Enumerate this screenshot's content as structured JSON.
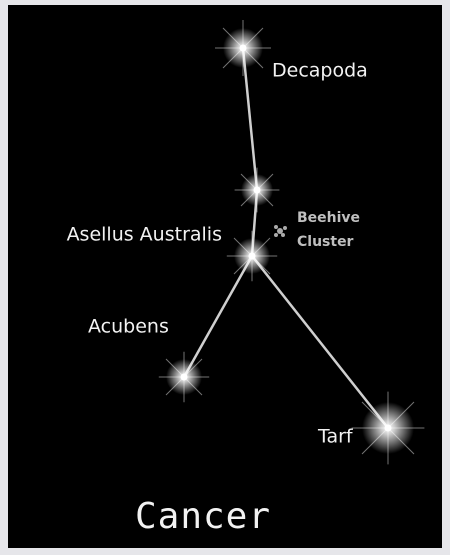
{
  "title": "Cancer",
  "stars": [
    {
      "label": "Decapoda"
    },
    {
      "label": "Asellus Australis"
    },
    {
      "label": "Acubens"
    },
    {
      "label": "Tarf"
    }
  ],
  "cluster": {
    "label_lines": [
      "Beehive",
      "Cluster"
    ]
  }
}
